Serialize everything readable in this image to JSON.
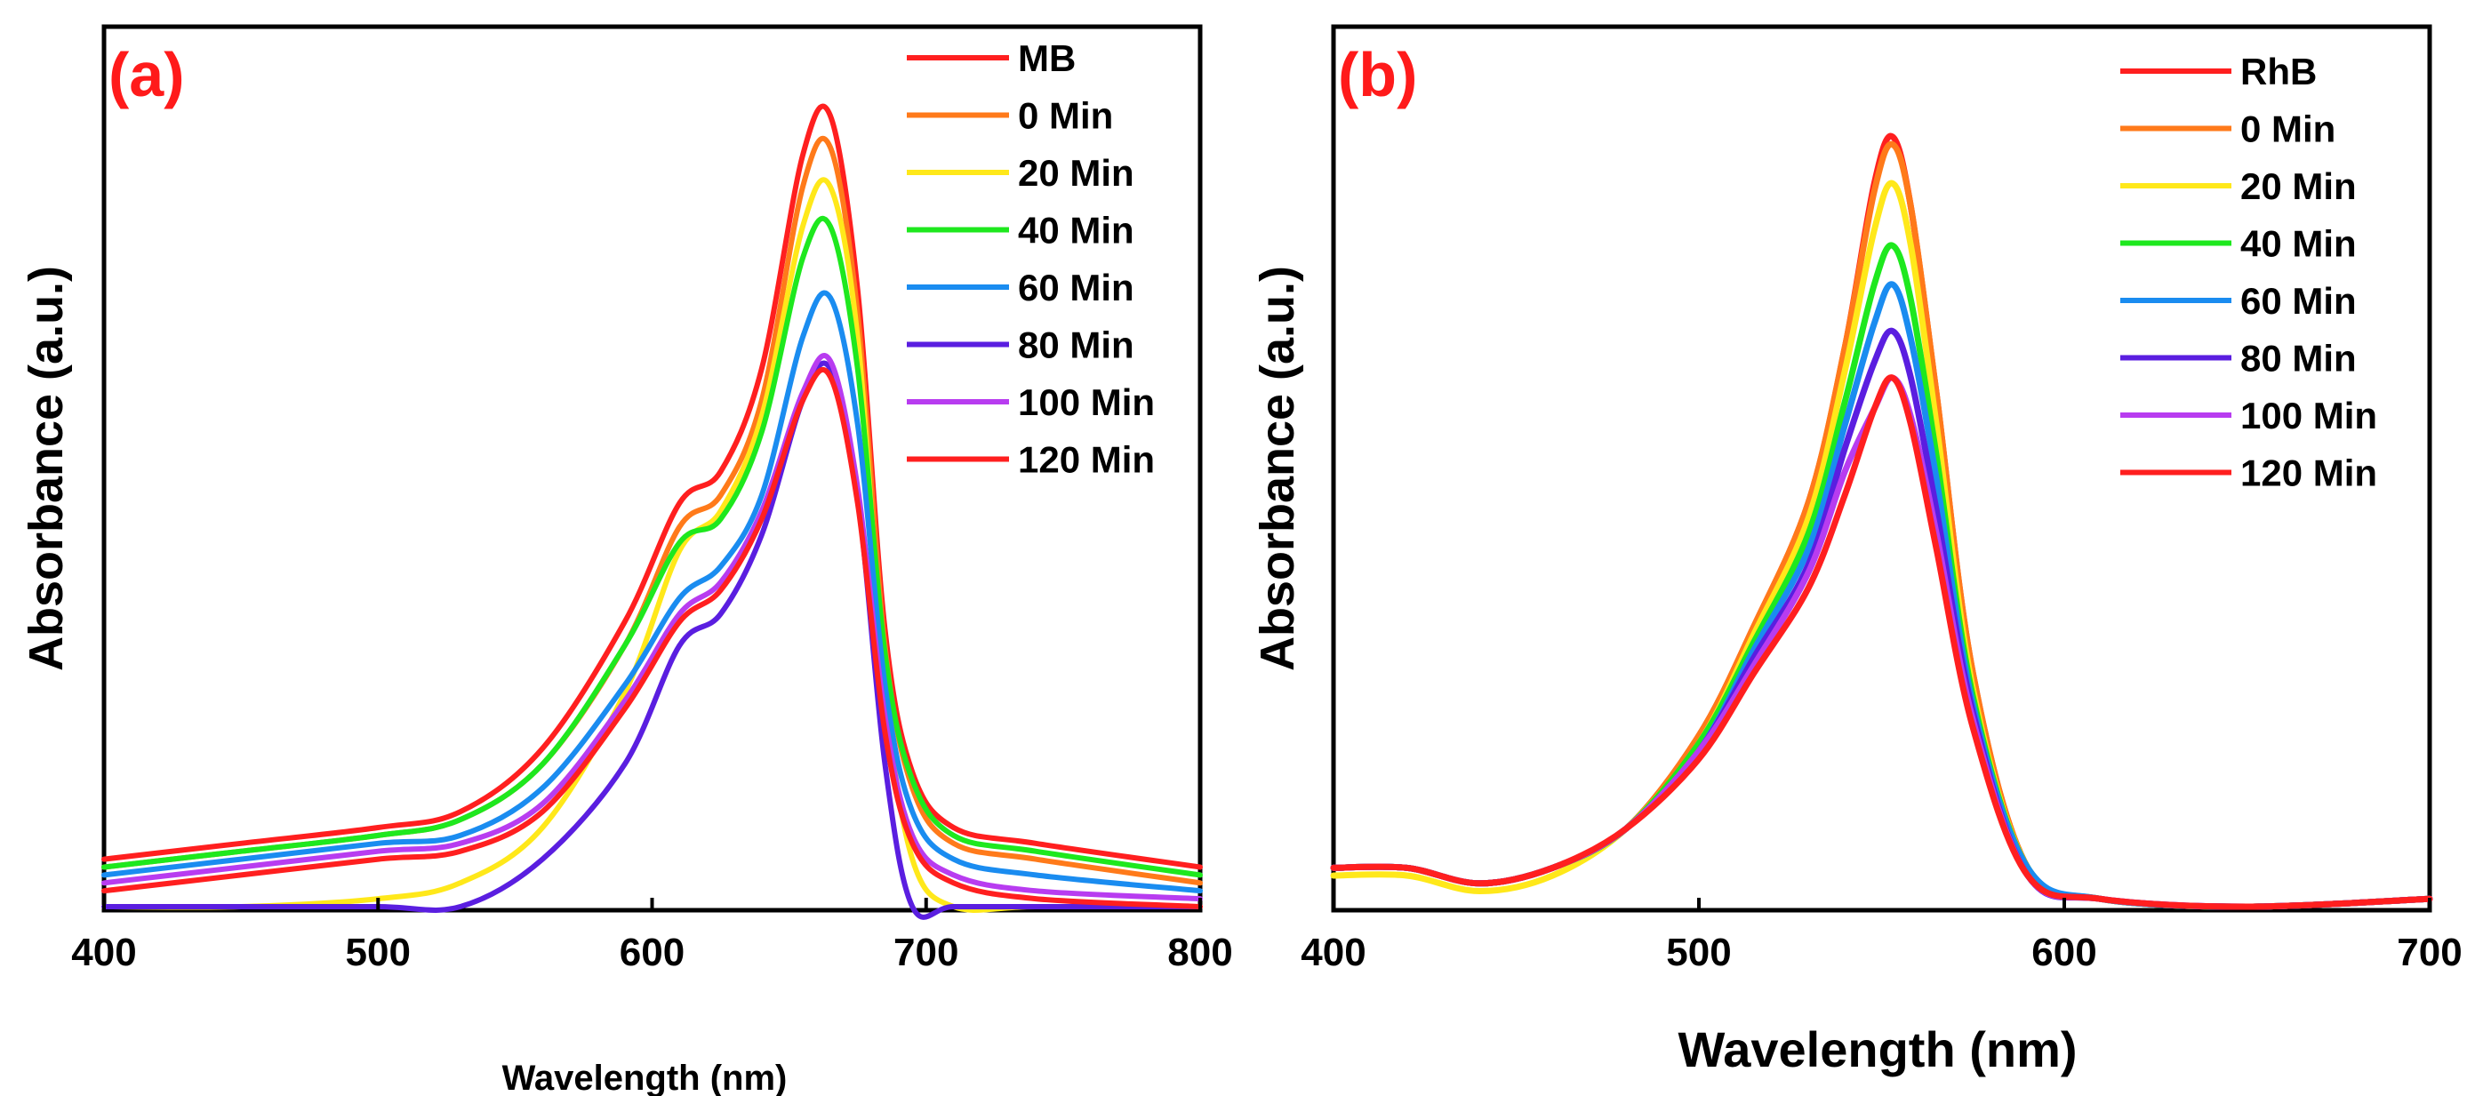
{
  "chart_data": [
    {
      "type": "line",
      "panel_label": "(a)",
      "panel_label_color": "#ff1a1a",
      "xlabel": "Wavelength (nm)",
      "ylabel": "Absorbance (a.u.)",
      "xlim": [
        400,
        800
      ],
      "ylim": [
        0,
        1.0
      ],
      "xticks": [
        400,
        500,
        600,
        700,
        800
      ],
      "yticks_shown": false,
      "legend": "top-right",
      "x": [
        400,
        450,
        500,
        530,
        560,
        590,
        610,
        625,
        640,
        655,
        665,
        675,
        685,
        695,
        710,
        740,
        800
      ],
      "series": [
        {
          "name": "MB",
          "color": "#ff1f1f",
          "values": [
            0.06,
            0.08,
            0.1,
            0.12,
            0.2,
            0.36,
            0.51,
            0.55,
            0.68,
            0.95,
            1.0,
            0.78,
            0.35,
            0.17,
            0.1,
            0.08,
            0.05
          ]
        },
        {
          "name": "0 Min",
          "color": "#ff7a1a",
          "values": [
            0.05,
            0.07,
            0.09,
            0.11,
            0.18,
            0.33,
            0.48,
            0.52,
            0.64,
            0.91,
            0.96,
            0.75,
            0.33,
            0.15,
            0.08,
            0.06,
            0.03
          ]
        },
        {
          "name": "20 Min",
          "color": "#ffe81a",
          "values": [
            0.0,
            0.0,
            0.01,
            0.03,
            0.1,
            0.27,
            0.45,
            0.5,
            0.62,
            0.86,
            0.91,
            0.72,
            0.28,
            0.06,
            0.0,
            0.0,
            0.0
          ]
        },
        {
          "name": "40 Min",
          "color": "#1ee81e",
          "values": [
            0.05,
            0.07,
            0.09,
            0.11,
            0.18,
            0.33,
            0.46,
            0.49,
            0.6,
            0.82,
            0.86,
            0.68,
            0.32,
            0.16,
            0.09,
            0.07,
            0.04
          ]
        },
        {
          "name": "60 Min",
          "color": "#1a8cf0",
          "values": [
            0.04,
            0.06,
            0.08,
            0.09,
            0.15,
            0.28,
            0.39,
            0.43,
            0.52,
            0.72,
            0.77,
            0.61,
            0.28,
            0.12,
            0.06,
            0.04,
            0.02
          ]
        },
        {
          "name": "80 Min",
          "color": "#5a1ee0",
          "values": [
            0.0,
            0.0,
            0.0,
            0.0,
            0.06,
            0.18,
            0.33,
            0.37,
            0.47,
            0.64,
            0.68,
            0.52,
            0.18,
            0.0,
            0.0,
            0.0,
            0.0
          ]
        },
        {
          "name": "100 Min",
          "color": "#b83cf0",
          "values": [
            0.03,
            0.05,
            0.07,
            0.08,
            0.13,
            0.26,
            0.37,
            0.41,
            0.5,
            0.65,
            0.69,
            0.53,
            0.24,
            0.09,
            0.04,
            0.02,
            0.01
          ]
        },
        {
          "name": "120 Min",
          "color": "#ff1f1f",
          "values": [
            0.02,
            0.04,
            0.06,
            0.07,
            0.12,
            0.25,
            0.36,
            0.4,
            0.49,
            0.64,
            0.67,
            0.51,
            0.22,
            0.08,
            0.03,
            0.01,
            0.0
          ]
        }
      ]
    },
    {
      "type": "line",
      "panel_label": "(b)",
      "panel_label_color": "#ff1a1a",
      "xlabel": "Wavelength (nm)",
      "ylabel": "Absorbance (a.u.)",
      "xlim": [
        400,
        700
      ],
      "ylim": [
        0,
        1.0
      ],
      "xticks": [
        400,
        500,
        600,
        700
      ],
      "yticks_shown": false,
      "legend": "top-right",
      "x": [
        400,
        420,
        440,
        460,
        480,
        500,
        515,
        530,
        540,
        548,
        553,
        558,
        565,
        575,
        590,
        610,
        650,
        700
      ],
      "series": [
        {
          "name": "RhB",
          "color": "#ff1f1f",
          "values": [
            0.05,
            0.05,
            0.03,
            0.05,
            0.1,
            0.22,
            0.36,
            0.52,
            0.72,
            0.93,
            0.99,
            0.9,
            0.66,
            0.3,
            0.05,
            0.01,
            0.0,
            0.01
          ]
        },
        {
          "name": "0 Min",
          "color": "#ff7a1a",
          "values": [
            0.05,
            0.05,
            0.03,
            0.05,
            0.1,
            0.22,
            0.36,
            0.52,
            0.72,
            0.92,
            0.98,
            0.9,
            0.66,
            0.3,
            0.05,
            0.01,
            0.0,
            0.01
          ]
        },
        {
          "name": "20 Min",
          "color": "#ffe81a",
          "values": [
            0.04,
            0.04,
            0.02,
            0.04,
            0.1,
            0.21,
            0.35,
            0.5,
            0.69,
            0.87,
            0.93,
            0.85,
            0.62,
            0.28,
            0.05,
            0.01,
            0.0,
            0.01
          ]
        },
        {
          "name": "40 Min",
          "color": "#1ee81e",
          "values": [
            0.05,
            0.05,
            0.03,
            0.05,
            0.1,
            0.21,
            0.34,
            0.48,
            0.65,
            0.8,
            0.85,
            0.78,
            0.58,
            0.27,
            0.05,
            0.01,
            0.0,
            0.01
          ]
        },
        {
          "name": "60 Min",
          "color": "#1a8cf0",
          "values": [
            0.05,
            0.05,
            0.03,
            0.05,
            0.1,
            0.2,
            0.33,
            0.46,
            0.62,
            0.75,
            0.8,
            0.73,
            0.55,
            0.26,
            0.05,
            0.01,
            0.0,
            0.01
          ]
        },
        {
          "name": "80 Min",
          "color": "#5a1ee0",
          "values": [
            0.05,
            0.05,
            0.03,
            0.05,
            0.1,
            0.2,
            0.32,
            0.44,
            0.59,
            0.7,
            0.74,
            0.68,
            0.51,
            0.25,
            0.04,
            0.01,
            0.0,
            0.01
          ]
        },
        {
          "name": "100 Min",
          "color": "#b83cf0",
          "values": [
            0.05,
            0.05,
            0.03,
            0.05,
            0.1,
            0.2,
            0.31,
            0.43,
            0.56,
            0.64,
            0.68,
            0.63,
            0.48,
            0.24,
            0.04,
            0.01,
            0.0,
            0.01
          ]
        },
        {
          "name": "120 Min",
          "color": "#ff1f1f",
          "values": [
            0.05,
            0.05,
            0.03,
            0.05,
            0.1,
            0.19,
            0.3,
            0.41,
            0.53,
            0.64,
            0.68,
            0.62,
            0.46,
            0.23,
            0.04,
            0.01,
            0.0,
            0.01
          ]
        }
      ]
    }
  ]
}
